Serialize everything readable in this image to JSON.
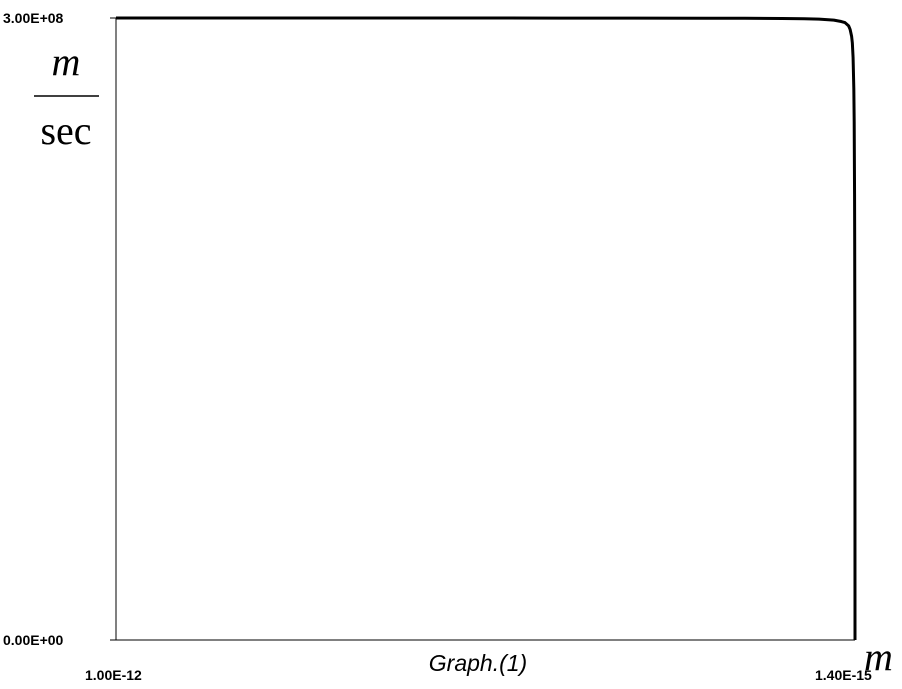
{
  "chart_data": {
    "type": "line",
    "caption": "Graph.(1)",
    "y_unit": {
      "numerator": "m",
      "denominator": "sec"
    },
    "x_unit": "m",
    "x_ticks": [
      "1.00E-12",
      "1.40E-15"
    ],
    "y_ticks": [
      "3.00E+08",
      "0.00E+00"
    ],
    "xlim": [
      1e-12,
      1.4e-15
    ],
    "ylim": [
      0,
      300000000.0
    ],
    "grid": false,
    "legend": "none",
    "series": [
      {
        "color": "#000000",
        "x": [
          1e-12,
          9e-13,
          8e-13,
          7e-13,
          6e-13,
          5e-13,
          4e-13,
          3e-13,
          2e-13,
          1.5e-13,
          1e-13,
          7e-14,
          5e-14,
          3e-14,
          2e-14,
          1.5e-14,
          1e-14,
          8e-15,
          6e-15,
          5e-15,
          4e-15,
          3e-15,
          2.5e-15,
          2e-15,
          1.8e-15,
          1.6e-15,
          1.5e-15,
          1.45e-15,
          1.41e-15,
          1.4e-15
        ],
        "y": [
          299999000,
          299997000,
          299994000,
          299990000,
          299985000,
          299978000,
          299968000,
          299950000,
          299910000,
          299870000,
          299780000,
          299650000,
          299450000,
          298980000,
          298300000,
          297800000,
          296200000,
          294500000,
          291200000,
          288000000,
          281000000,
          266000000,
          250000000,
          215000000,
          190000000,
          145000000,
          105000000,
          72000000,
          25000000,
          0
        ]
      }
    ]
  }
}
